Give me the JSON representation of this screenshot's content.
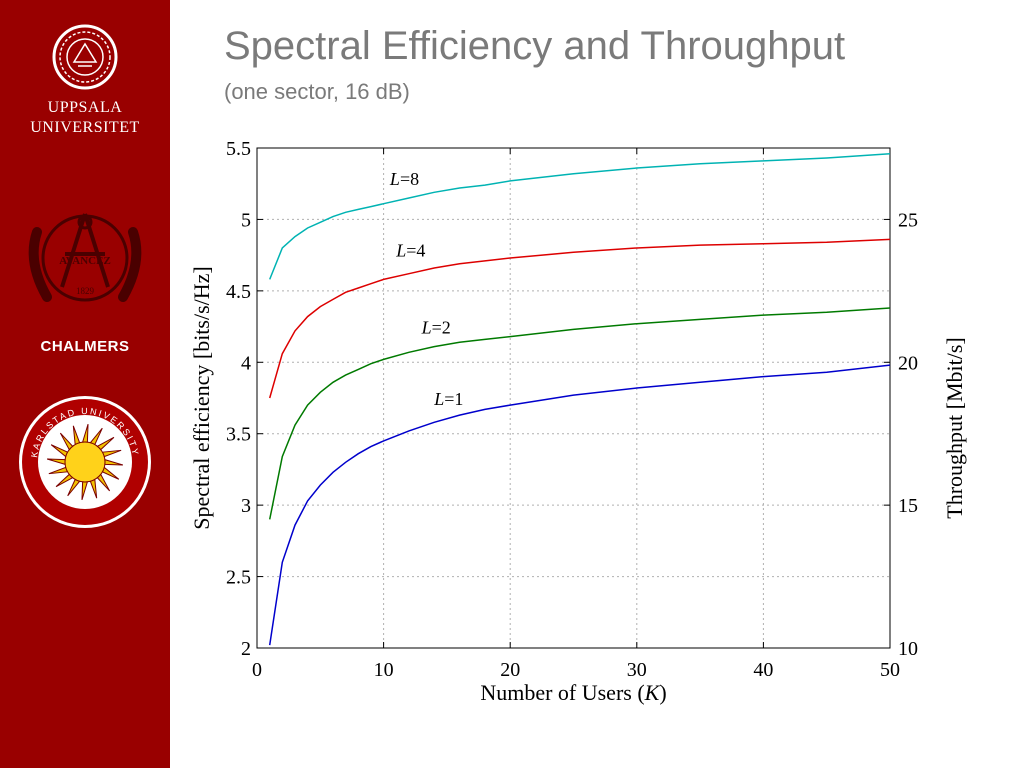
{
  "slide": {
    "title": "Spectral Efficiency and Throughput",
    "subtitle": "(one sector, 16 dB)"
  },
  "logos": {
    "uppsala": {
      "line1": "UPPSALA",
      "line2": "UNIVERSITET"
    },
    "chalmers": {
      "name": "CHALMERS",
      "emblem_motto": "AVANCEZ",
      "emblem_year": "1829"
    },
    "karlstad": {
      "arc_text": "KARLSTAD UNIVERSITY"
    }
  },
  "colors": {
    "sidebar": "#990000",
    "title_gray": "#7a7a7a",
    "series_L1": "#0000cc",
    "series_L2": "#007a00",
    "series_L4": "#dd0000",
    "series_L8": "#00b3b3"
  },
  "chart_data": {
    "type": "line",
    "title": "",
    "xlabel_main": "Number of Users (",
    "xlabel_var": "K",
    "xlabel_end": ")",
    "ylabel": "Spectral efficiency [bits/s/Hz]",
    "y2label": "Throughput [Mbit/s]",
    "xlim": [
      0,
      50
    ],
    "ylim": [
      2,
      5.5
    ],
    "y2lim": [
      10,
      27.5
    ],
    "grid": true,
    "xticks": [
      0,
      10,
      20,
      30,
      40,
      50
    ],
    "xtick_labels": [
      "0",
      "10",
      "20",
      "30",
      "40",
      "50"
    ],
    "yticks": [
      2,
      2.5,
      3,
      3.5,
      4,
      4.5,
      5,
      5.5
    ],
    "ytick_labels": [
      "2",
      "2.5",
      "3",
      "3.5",
      "4",
      "4.5",
      "5",
      "5.5"
    ],
    "y2ticks": [
      10,
      15,
      20,
      25
    ],
    "y2tick_labels": [
      "10",
      "15",
      "20",
      "25"
    ],
    "x": [
      1,
      2,
      3,
      4,
      5,
      6,
      7,
      8,
      9,
      10,
      12,
      14,
      16,
      18,
      20,
      25,
      30,
      35,
      40,
      45,
      50
    ],
    "series": [
      {
        "name": "L=1",
        "label_var": "L",
        "label_rest": "=1",
        "color_key": "series_L1",
        "label_at": [
          14,
          3.7
        ],
        "values": [
          2.02,
          2.6,
          2.86,
          3.03,
          3.14,
          3.23,
          3.3,
          3.36,
          3.41,
          3.45,
          3.52,
          3.58,
          3.63,
          3.67,
          3.7,
          3.77,
          3.82,
          3.86,
          3.9,
          3.93,
          3.98
        ]
      },
      {
        "name": "L=2",
        "label_var": "L",
        "label_rest": "=2",
        "color_key": "series_L2",
        "label_at": [
          13,
          4.2
        ],
        "values": [
          2.9,
          3.34,
          3.56,
          3.7,
          3.79,
          3.86,
          3.91,
          3.95,
          3.99,
          4.02,
          4.07,
          4.11,
          4.14,
          4.16,
          4.18,
          4.23,
          4.27,
          4.3,
          4.33,
          4.35,
          4.38
        ]
      },
      {
        "name": "L=4",
        "label_var": "L",
        "label_rest": "=4",
        "color_key": "series_L4",
        "label_at": [
          11,
          4.74
        ],
        "values": [
          3.75,
          4.06,
          4.22,
          4.32,
          4.39,
          4.44,
          4.49,
          4.52,
          4.55,
          4.58,
          4.62,
          4.66,
          4.69,
          4.71,
          4.73,
          4.77,
          4.8,
          4.82,
          4.83,
          4.84,
          4.86
        ]
      },
      {
        "name": "L=8",
        "label_var": "L",
        "label_rest": "=8",
        "color_key": "series_L8",
        "label_at": [
          10.5,
          5.24
        ],
        "values": [
          4.58,
          4.8,
          4.88,
          4.94,
          4.98,
          5.02,
          5.05,
          5.07,
          5.09,
          5.11,
          5.15,
          5.19,
          5.22,
          5.24,
          5.27,
          5.32,
          5.36,
          5.39,
          5.41,
          5.43,
          5.46
        ]
      }
    ]
  }
}
